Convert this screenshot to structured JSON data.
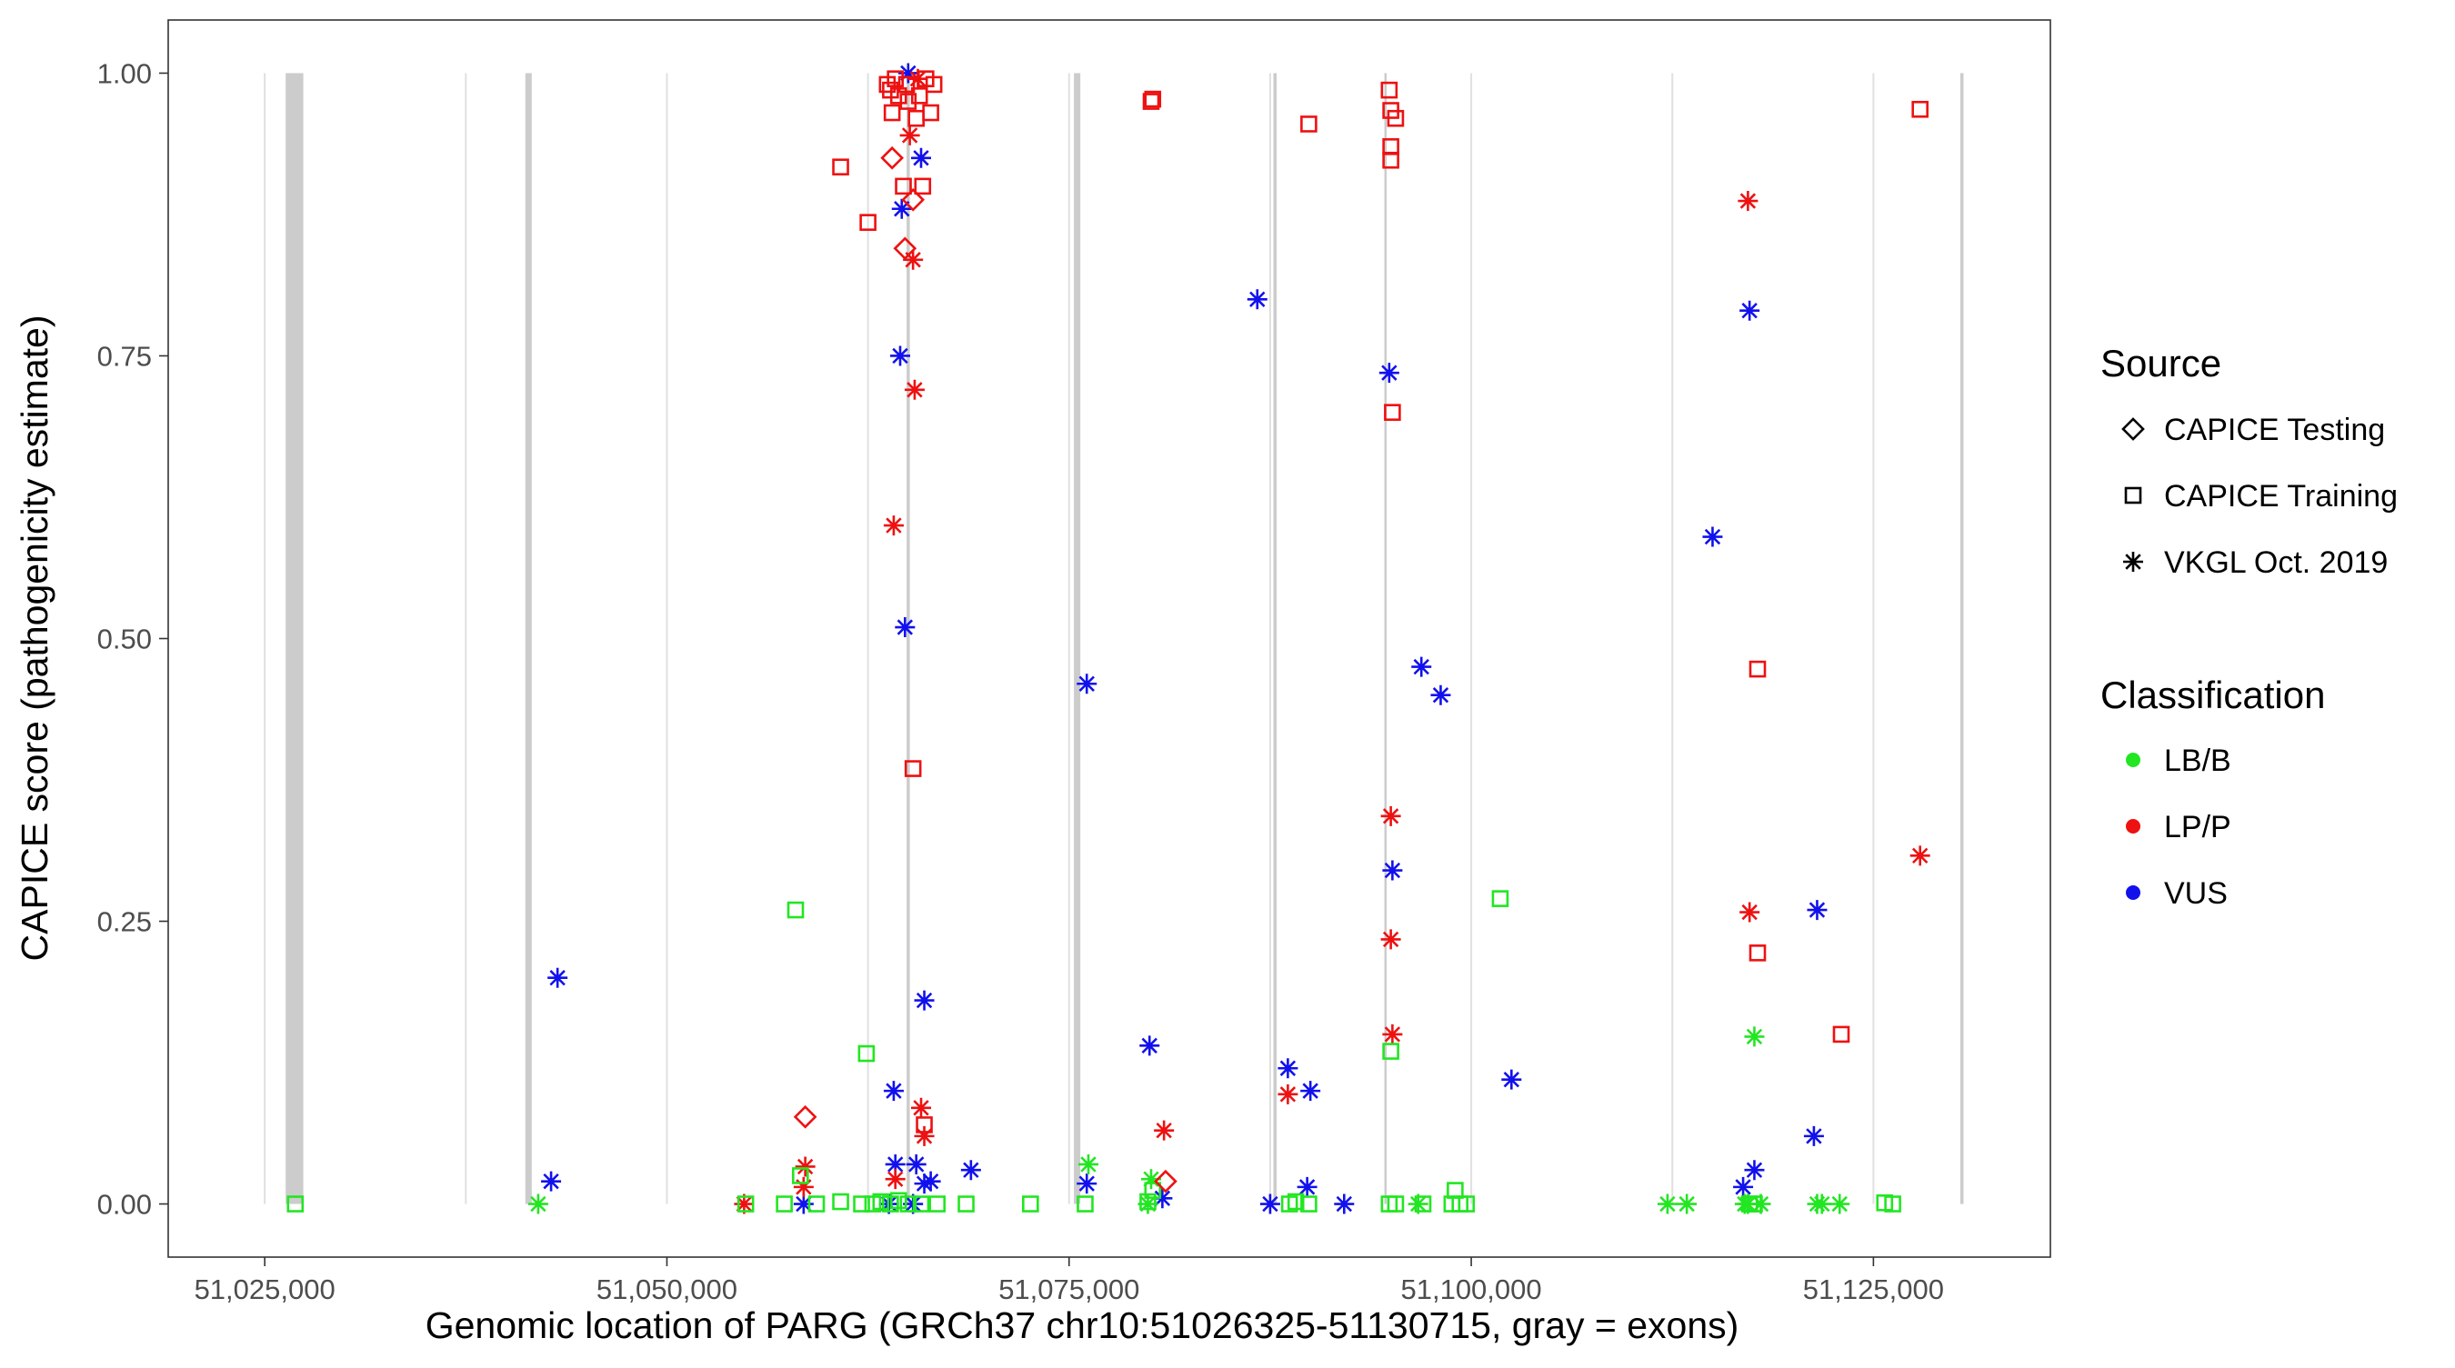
{
  "chart_data": {
    "type": "scatter",
    "xlabel": "Genomic location of PARG (GRCh37 chr10:51026325-51130715, gray = exons)",
    "ylabel": "CAPICE score (pathogenicity estimate)",
    "xlim": [
      51019000,
      51136000
    ],
    "ylim": [
      -0.047,
      1.047
    ],
    "x_ticks": [
      51025000,
      51050000,
      51075000,
      51100000,
      51125000
    ],
    "x_tick_labels": [
      "51,025,000",
      "51,050,000",
      "51,075,000",
      "51,100,000",
      "51,125,000"
    ],
    "y_ticks": [
      0,
      0.25,
      0.5,
      0.75,
      1.0
    ],
    "y_tick_labels": [
      "0.00",
      "0.25",
      "0.50",
      "0.75",
      "1.00"
    ],
    "vertical_gridlines": [
      51025000,
      51037500,
      51050000,
      51062500,
      51075000,
      51087500,
      51100000,
      51112500,
      51125000
    ],
    "exons": [
      {
        "start": 51026300,
        "end": 51027400
      },
      {
        "start": 51041200,
        "end": 51041600
      },
      {
        "start": 51064900,
        "end": 51065100
      },
      {
        "start": 51075300,
        "end": 51075700
      },
      {
        "start": 51087700,
        "end": 51087900
      },
      {
        "start": 51094600,
        "end": 51094700
      },
      {
        "start": 51130400,
        "end": 51130600
      }
    ],
    "colors": {
      "LB/B": "#22e622",
      "LP/P": "#ee1111",
      "VUS": "#1111ee",
      "exon": "#cccccc",
      "grid": "#e0e0e0"
    },
    "legend": {
      "position": "right",
      "source_title": "Source",
      "source_entries": [
        {
          "label": "CAPICE Testing",
          "shape": "diamond"
        },
        {
          "label": "CAPICE Training",
          "shape": "square"
        },
        {
          "label": "VKGL Oct. 2019",
          "shape": "asterisk"
        }
      ],
      "class_title": "Classification",
      "class_entries": [
        {
          "label": "LB/B",
          "key": "LB/B"
        },
        {
          "label": "LP/P",
          "key": "LP/P"
        },
        {
          "label": "VUS",
          "key": "VUS"
        }
      ]
    },
    "series": [
      {
        "source": "VKGL Oct. 2019",
        "class": "VUS",
        "points": [
          [
            51042800,
            0.02
          ],
          [
            51043200,
            0.2
          ],
          [
            51058500,
            0.0
          ],
          [
            51063800,
            0.0
          ],
          [
            51064100,
            0.1
          ],
          [
            51064200,
            0.035
          ],
          [
            51064500,
            0.75
          ],
          [
            51064600,
            0.88
          ],
          [
            51064800,
            0.51
          ],
          [
            51065000,
            1.0
          ],
          [
            51065300,
            0.0
          ],
          [
            51065500,
            0.035
          ],
          [
            51065800,
            0.925
          ],
          [
            51066000,
            0.018
          ],
          [
            51066000,
            0.18
          ],
          [
            51066400,
            0.02
          ],
          [
            51068900,
            0.03
          ],
          [
            51076100,
            0.46
          ],
          [
            51076100,
            0.018
          ],
          [
            51080000,
            0.14
          ],
          [
            51080800,
            0.005
          ],
          [
            51086700,
            0.8
          ],
          [
            51087500,
            0.0
          ],
          [
            51088600,
            0.12
          ],
          [
            51089800,
            0.015
          ],
          [
            51090000,
            0.1
          ],
          [
            51092100,
            0.0
          ],
          [
            51094900,
            0.735
          ],
          [
            51095100,
            0.295
          ],
          [
            51096900,
            0.475
          ],
          [
            51098100,
            0.45
          ],
          [
            51102500,
            0.11
          ],
          [
            51115000,
            0.59
          ],
          [
            51116900,
            0.015
          ],
          [
            51117300,
            0.79
          ],
          [
            51117600,
            0.03
          ],
          [
            51121300,
            0.06
          ],
          [
            51121500,
            0.26
          ]
        ]
      },
      {
        "source": "VKGL Oct. 2019",
        "class": "LP/P",
        "points": [
          [
            51054800,
            0.0
          ],
          [
            51058500,
            0.015
          ],
          [
            51058600,
            0.033
          ],
          [
            51064100,
            0.6
          ],
          [
            51064200,
            0.022
          ],
          [
            51065100,
            0.945
          ],
          [
            51065300,
            0.835
          ],
          [
            51065400,
            0.72
          ],
          [
            51065600,
            0.995
          ],
          [
            51065800,
            0.085
          ],
          [
            51066000,
            0.06
          ],
          [
            51080900,
            0.065
          ],
          [
            51088600,
            0.097
          ],
          [
            51095000,
            0.343
          ],
          [
            51095000,
            0.234
          ],
          [
            51095100,
            0.15
          ],
          [
            51117200,
            0.887
          ],
          [
            51117300,
            0.258
          ],
          [
            51127900,
            0.308
          ]
        ]
      },
      {
        "source": "VKGL Oct. 2019",
        "class": "LB/B",
        "points": [
          [
            51042000,
            0.0
          ],
          [
            51076200,
            0.035
          ],
          [
            51079900,
            0.0
          ],
          [
            51080100,
            0.022
          ],
          [
            51096700,
            0.0
          ],
          [
            51112200,
            0.0
          ],
          [
            51113400,
            0.0
          ],
          [
            51117000,
            0.0
          ],
          [
            51117200,
            0.0
          ],
          [
            51117600,
            0.148
          ],
          [
            51118000,
            0.0
          ],
          [
            51121500,
            0.0
          ],
          [
            51121800,
            0.0
          ],
          [
            51122900,
            0.0
          ]
        ]
      },
      {
        "source": "CAPICE Training",
        "class": "LP/P",
        "points": [
          [
            51060800,
            0.917
          ],
          [
            51062500,
            0.868
          ],
          [
            51063700,
            0.99
          ],
          [
            51063900,
            0.985
          ],
          [
            51064000,
            0.965
          ],
          [
            51064200,
            0.995
          ],
          [
            51064400,
            0.98
          ],
          [
            51064700,
            0.9
          ],
          [
            51064900,
            0.99
          ],
          [
            51065000,
            0.975
          ],
          [
            51065300,
            0.385
          ],
          [
            51065500,
            0.96
          ],
          [
            51065700,
            0.98
          ],
          [
            51065900,
            0.9
          ],
          [
            51066000,
            0.07
          ],
          [
            51066100,
            0.995
          ],
          [
            51066400,
            0.965
          ],
          [
            51066600,
            0.99
          ],
          [
            51080100,
            0.975
          ],
          [
            51080200,
            0.977
          ],
          [
            51089900,
            0.955
          ],
          [
            51094900,
            0.985
          ],
          [
            51095000,
            0.967
          ],
          [
            51095000,
            0.935
          ],
          [
            51095000,
            0.923
          ],
          [
            51095100,
            0.7
          ],
          [
            51095300,
            0.96
          ],
          [
            51117800,
            0.473
          ],
          [
            51117800,
            0.222
          ],
          [
            51123000,
            0.15
          ],
          [
            51127900,
            0.968
          ]
        ]
      },
      {
        "source": "CAPICE Training",
        "class": "LB/B",
        "points": [
          [
            51026900,
            0.0
          ],
          [
            51054900,
            0.0
          ],
          [
            51057300,
            0.0
          ],
          [
            51058000,
            0.26
          ],
          [
            51058300,
            0.025
          ],
          [
            51059300,
            0.0
          ],
          [
            51060800,
            0.002
          ],
          [
            51062100,
            0.0
          ],
          [
            51062400,
            0.133
          ],
          [
            51062800,
            0.0
          ],
          [
            51063300,
            0.002
          ],
          [
            51063900,
            0.0
          ],
          [
            51064400,
            0.003
          ],
          [
            51065000,
            0.0
          ],
          [
            51065800,
            0.0
          ],
          [
            51066800,
            0.0
          ],
          [
            51068600,
            0.0
          ],
          [
            51072600,
            0.0
          ],
          [
            51076000,
            0.0
          ],
          [
            51079900,
            0.002
          ],
          [
            51080200,
            0.012
          ],
          [
            51088700,
            0.0
          ],
          [
            51089100,
            0.002
          ],
          [
            51089900,
            0.0
          ],
          [
            51094900,
            0.0
          ],
          [
            51095000,
            0.135
          ],
          [
            51095300,
            0.0
          ],
          [
            51097000,
            0.0
          ],
          [
            51098800,
            0.0
          ],
          [
            51099000,
            0.012
          ],
          [
            51099300,
            0.0
          ],
          [
            51099700,
            0.0
          ],
          [
            51101800,
            0.27
          ],
          [
            51117300,
            0.0
          ],
          [
            51117600,
            0.0
          ],
          [
            51125700,
            0.001
          ],
          [
            51126200,
            0.0
          ]
        ]
      },
      {
        "source": "CAPICE Testing",
        "class": "LP/P",
        "points": [
          [
            51058600,
            0.077
          ],
          [
            51064000,
            0.925
          ],
          [
            51064800,
            0.845
          ],
          [
            51065300,
            0.888
          ],
          [
            51081000,
            0.02
          ]
        ]
      }
    ]
  }
}
